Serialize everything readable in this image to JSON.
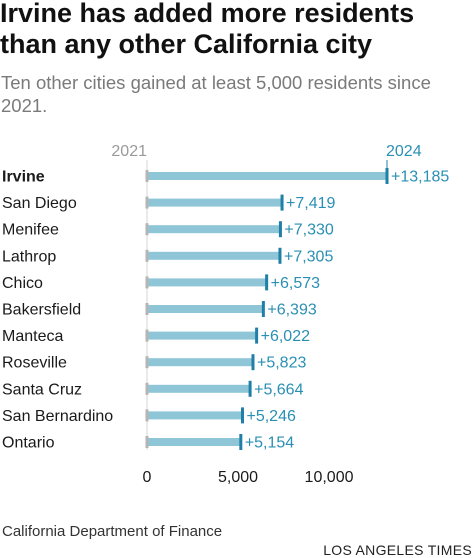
{
  "title": "Irvine has added more residents than any other California city",
  "subtitle": "Ten other cities gained at least 5,000 residents since 2021.",
  "source": "California Department of Finance",
  "credit": "LOS ANGELES TIMES",
  "colors": {
    "bar": "#8ec6d8",
    "marker": "#1f7fa6",
    "label": "#2a8fb4",
    "start_marker": "#b5b5b5",
    "start_label": "#9a9a9a"
  },
  "chart_data": {
    "type": "bar",
    "orientation": "horizontal",
    "start_label": "2021",
    "end_label": "2024",
    "categories": [
      "Irvine",
      "San Diego",
      "Menifee",
      "Lathrop",
      "Chico",
      "Bakersfield",
      "Manteca",
      "Roseville",
      "Santa Cruz",
      "San Bernardino",
      "Ontario"
    ],
    "values": [
      13185,
      7419,
      7330,
      7305,
      6573,
      6393,
      6022,
      5823,
      5664,
      5246,
      5154
    ],
    "value_labels": [
      "+13,185",
      "+7,419",
      "+7,330",
      "+7,305",
      "+6,573",
      "+6,393",
      "+6,022",
      "+5,823",
      "+5,664",
      "+5,246",
      "+5,154"
    ],
    "highlight": "Irvine",
    "xlim": [
      0,
      13185
    ],
    "xticks": [
      0,
      5000,
      10000
    ],
    "xtick_labels": [
      "0",
      "5,000",
      "10,000"
    ],
    "grid": false,
    "legend": "none"
  }
}
